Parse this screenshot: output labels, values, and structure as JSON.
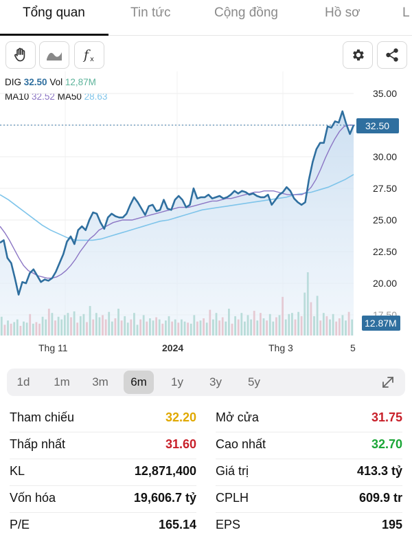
{
  "tabs": [
    {
      "label": "Tổng quan",
      "active": true
    },
    {
      "label": "Tin tức",
      "active": false
    },
    {
      "label": "Cộng đồng",
      "active": false
    },
    {
      "label": "Hồ sơ",
      "active": false
    },
    {
      "label": "L",
      "active": false
    }
  ],
  "toolbar": {
    "left_icons": [
      "hand-icon",
      "wave-icon",
      "fx-icon"
    ],
    "right_icons": [
      "gear-icon",
      "share-icon"
    ]
  },
  "legend": {
    "symbol": "DIG",
    "price": "32.50",
    "vol_label": "Vol",
    "vol": "12,87M",
    "ma10_label": "MA10",
    "ma10": "32.52",
    "ma50_label": "MA50",
    "ma50": "28.63"
  },
  "colors": {
    "price_line": "#2f6f9f",
    "ma10": "#8b75c4",
    "ma50": "#7ec4ea",
    "vol_up": "#5cb39a",
    "vol_down": "#e07b86",
    "up_text": "#1aa636",
    "down_text": "#c8202a",
    "ref_text": "#e0a800"
  },
  "chart_data": {
    "type": "line",
    "y_ticks": [
      "35.00",
      "32.50",
      "30.00",
      "27.50",
      "25.00",
      "22.50",
      "20.00",
      "17.50"
    ],
    "ylim": [
      17.5,
      35
    ],
    "x_labels": [
      "Thg 11",
      "2024",
      "Thg 3",
      "5"
    ],
    "current_price": "32.50",
    "current_volume": "12.87M",
    "series": [
      {
        "name": "DIG",
        "values": [
          23.2,
          23.4,
          22.0,
          21.6,
          20.4,
          19.1,
          20.1,
          20.0,
          20.8,
          21.1,
          20.6,
          20.1,
          20.3,
          20.2,
          20.4,
          20.9,
          21.6,
          22.3,
          23.3,
          23.7,
          23.1,
          24.2,
          24.5,
          24.2,
          25.0,
          25.6,
          25.5,
          24.8,
          24.3,
          25.2,
          25.5,
          25.3,
          25.2,
          25.2,
          25.5,
          26.2,
          26.8,
          26.4,
          25.9,
          25.4,
          26.1,
          26.2,
          25.7,
          25.8,
          26.6,
          25.9,
          25.8,
          26.6,
          26.9,
          26.6,
          26.0,
          26.2,
          27.5,
          26.7,
          26.8,
          26.8,
          27.0,
          26.7,
          26.8,
          26.9,
          26.7,
          26.8,
          27.0,
          27.3,
          27.1,
          27.3,
          27.2,
          27.0,
          27.1,
          26.9,
          26.8,
          26.8,
          27.0,
          26.2,
          26.6,
          27.0,
          27.2,
          27.6,
          27.3,
          26.7,
          26.4,
          26.2,
          26.4,
          28.2,
          29.6,
          30.6,
          31.1,
          31.1,
          32.4,
          32.3,
          32.8,
          32.7,
          33.6,
          32.6,
          31.8,
          32.5
        ]
      },
      {
        "name": "MA10",
        "values": [
          24.5,
          24.0,
          23.4,
          22.7,
          22.0,
          21.4,
          21.0,
          20.8,
          20.6,
          20.5,
          20.4,
          20.4,
          20.5,
          20.7,
          21.0,
          21.4,
          21.9,
          22.5,
          23.0,
          23.5,
          23.8,
          24.2,
          24.4,
          24.6,
          24.8,
          24.9,
          25.0,
          25.0,
          25.0,
          25.1,
          25.2,
          25.3,
          25.4,
          25.5,
          25.6,
          25.7,
          25.8,
          25.9,
          26.0,
          26.0,
          26.0,
          26.1,
          26.2,
          26.3,
          26.4,
          26.5,
          26.5,
          26.6,
          26.7,
          26.7,
          26.8,
          26.9,
          27.0,
          27.1,
          27.2,
          27.2,
          27.3,
          27.3,
          27.3,
          27.2,
          27.1,
          27.0,
          27.0,
          27.0,
          27.0,
          27.2,
          27.6,
          28.2,
          29.0,
          29.9,
          30.7,
          31.4,
          32.0,
          32.4,
          32.5,
          32.5
        ]
      },
      {
        "name": "MA50",
        "values": [
          27.0,
          26.6,
          26.1,
          25.6,
          25.1,
          24.6,
          24.2,
          23.9,
          23.6,
          23.4,
          23.4,
          23.4,
          23.5,
          23.7,
          23.9,
          24.1,
          24.3,
          24.5,
          24.7,
          24.9,
          25.0,
          25.2,
          25.4,
          25.6,
          25.8,
          25.9,
          26.0,
          26.1,
          26.2,
          26.3,
          26.4,
          26.5,
          26.6,
          26.7,
          26.8,
          27.0,
          27.1,
          27.2,
          27.4,
          27.6,
          27.9,
          28.2,
          28.6
        ]
      }
    ],
    "volume": {
      "colors": [
        "u",
        "d",
        "u",
        "d",
        "u",
        "u",
        "d",
        "u",
        "u",
        "d",
        "u",
        "d",
        "d",
        "u",
        "u",
        "d",
        "u",
        "d",
        "u",
        "u",
        "u",
        "u",
        "d",
        "u",
        "d",
        "u",
        "u",
        "d",
        "u",
        "d",
        "u",
        "u",
        "d",
        "d",
        "u",
        "u",
        "d",
        "u",
        "d",
        "u",
        "u",
        "d",
        "u",
        "u",
        "d",
        "u",
        "d",
        "u",
        "u",
        "d",
        "u",
        "d",
        "u",
        "u",
        "d",
        "u",
        "d",
        "u",
        "u",
        "d",
        "u",
        "u",
        "d",
        "u",
        "d",
        "u",
        "d",
        "u",
        "u",
        "d",
        "d",
        "u",
        "u",
        "d",
        "u",
        "d",
        "u",
        "u",
        "u",
        "u",
        "d",
        "u",
        "d",
        "u",
        "d",
        "u",
        "u",
        "d",
        "u",
        "d",
        "u",
        "u",
        "u",
        "d",
        "u",
        "d",
        "u",
        "u",
        "d",
        "u",
        "u",
        "d",
        "u",
        "d",
        "u",
        "u",
        "d",
        "d",
        "u",
        "u",
        "d",
        "u"
      ],
      "values": [
        35,
        20,
        28,
        22,
        25,
        30,
        18,
        26,
        24,
        40,
        22,
        25,
        22,
        35,
        30,
        50,
        42,
        28,
        35,
        30,
        38,
        42,
        34,
        45,
        24,
        36,
        40,
        25,
        55,
        30,
        42,
        34,
        38,
        30,
        44,
        26,
        32,
        50,
        28,
        36,
        24,
        30,
        42,
        20,
        30,
        38,
        26,
        32,
        28,
        34,
        30,
        22,
        28,
        36,
        26,
        30,
        24,
        30,
        26,
        24,
        22,
        38,
        26,
        28,
        32,
        24,
        48,
        30,
        42,
        28,
        34,
        26,
        50,
        22,
        36,
        30,
        42,
        26,
        38,
        30,
        46,
        28,
        42,
        32,
        28,
        40,
        26,
        34,
        38,
        72,
        30,
        40,
        42,
        30,
        44,
        36,
        80,
        118,
        62,
        36,
        74,
        28,
        42,
        36,
        30,
        40,
        26,
        32,
        38,
        28,
        44,
        30
      ]
    }
  },
  "periods": [
    {
      "label": "1d",
      "active": false
    },
    {
      "label": "1m",
      "active": false
    },
    {
      "label": "3m",
      "active": false
    },
    {
      "label": "6m",
      "active": true
    },
    {
      "label": "1y",
      "active": false
    },
    {
      "label": "3y",
      "active": false
    },
    {
      "label": "5y",
      "active": false
    }
  ],
  "stats_left": [
    {
      "label": "Tham chiếu",
      "value": "32.20",
      "color": "#e0a800"
    },
    {
      "label": "Thấp nhất",
      "value": "31.60",
      "color": "#c8202a"
    },
    {
      "label": "KL",
      "value": "12,871,400",
      "color": "#111111"
    },
    {
      "label": "Vốn hóa",
      "value": "19,606.7 tỷ",
      "color": "#111111"
    },
    {
      "label": "P/E",
      "value": "165.14",
      "color": "#111111"
    }
  ],
  "stats_right": [
    {
      "label": "Mở cửa",
      "value": "31.75",
      "color": "#c8202a"
    },
    {
      "label": "Cao nhất",
      "value": "32.70",
      "color": "#1aa636"
    },
    {
      "label": "Giá trị",
      "value": "413.3 tỷ",
      "color": "#111111"
    },
    {
      "label": "CPLH",
      "value": "609.9 tr",
      "color": "#111111"
    },
    {
      "label": "EPS",
      "value": "195",
      "color": "#111111"
    }
  ]
}
